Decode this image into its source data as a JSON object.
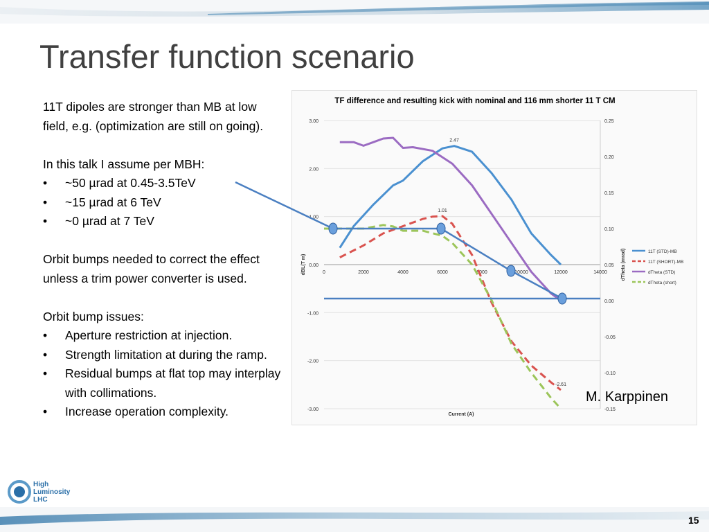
{
  "slide": {
    "title": "Transfer function scenario",
    "page_number": "15",
    "credit": "M. Karppinen",
    "logo_lines": [
      "High",
      "Luminosity",
      "LHC"
    ]
  },
  "body": {
    "para1": "11T dipoles are stronger than MB at low field, e.g. (optimization are still on going).",
    "para2": "In this talk I assume per MBH:",
    "assume_list": [
      "~50 µrad at 0.45-3.5TeV",
      "~15 µrad at 6 TeV",
      "~0 µrad at 7 TeV"
    ],
    "para3": "Orbit bumps needed to correct the effect unless a trim power converter is used.",
    "para4": "Orbit bump issues:",
    "issues_list": [
      "Aperture restriction at injection.",
      "Strength limitation at during the ramp.",
      "Residual bumps at flat top may interplay with collimations.",
      "Increase operation complexity."
    ]
  },
  "chart_data": {
    "type": "line",
    "title": "TF difference and resulting kick with nominal and 116 mm shorter 11 T CM",
    "xlabel": "Current (A)",
    "ylabel": "dBL(T m)",
    "y2label": "dTheta (mrad)",
    "xlim": [
      0,
      14000
    ],
    "ylim": [
      -3,
      3
    ],
    "y2lim": [
      -0.15,
      0.25
    ],
    "x_ticks": [
      "0",
      "2000",
      "4000",
      "6000",
      "8000",
      "10000",
      "12000",
      "14000"
    ],
    "y_ticks": [
      "3.00",
      "2.00",
      "1.00",
      "0.00",
      "-1.00",
      "-2.00",
      "-3.00"
    ],
    "y2_ticks": [
      "0.25",
      "0.20",
      "0.15",
      "0.10",
      "0.05",
      "0.00",
      "-0.05",
      "-0.10",
      "-0.15"
    ],
    "annotations": [
      {
        "text": "2.47",
        "x": 6600,
        "y": 2.47
      },
      {
        "text": "1.01",
        "x": 6000,
        "y": 1.01
      },
      {
        "text": "-2.61",
        "x": 12000,
        "y": -2.61
      }
    ],
    "legend_position": "right",
    "series": [
      {
        "name": "11T (STD)-MB",
        "axis": "left",
        "color": "#4a90d0",
        "dash": "",
        "x": [
          800,
          1500,
          2500,
          3500,
          4000,
          5000,
          6000,
          6600,
          7500,
          8500,
          9500,
          10500,
          11500,
          12000
        ],
        "y": [
          0.35,
          0.8,
          1.25,
          1.65,
          1.75,
          2.15,
          2.42,
          2.47,
          2.35,
          1.9,
          1.35,
          0.65,
          0.2,
          0.0
        ]
      },
      {
        "name": "11T (SHORT)-MB",
        "axis": "left",
        "color": "#d9534f",
        "dash": "10,6",
        "x": [
          800,
          2000,
          3000,
          4000,
          5000,
          5500,
          6000,
          6500,
          7500,
          8500,
          9500,
          10500,
          11500,
          12000
        ],
        "y": [
          0.15,
          0.4,
          0.65,
          0.8,
          0.95,
          1.0,
          1.01,
          0.85,
          0.2,
          -0.8,
          -1.6,
          -2.1,
          -2.45,
          -2.61
        ]
      },
      {
        "name": "dTheta (STD)",
        "axis": "right",
        "color": "#9b6bc2",
        "dash": "",
        "x": [
          800,
          1500,
          2000,
          2500,
          3000,
          3500,
          4000,
          4500,
          5500,
          6500,
          7500,
          8500,
          9500,
          10500,
          11500,
          12000
        ],
        "y": [
          0.22,
          0.22,
          0.215,
          0.22,
          0.225,
          0.226,
          0.212,
          0.213,
          0.208,
          0.19,
          0.16,
          0.12,
          0.08,
          0.04,
          0.01,
          0.0
        ]
      },
      {
        "name": "dTheta (short)",
        "axis": "right",
        "color": "#9cc55a",
        "dash": "10,6",
        "x": [
          0,
          1000,
          2000,
          3000,
          3500,
          4000,
          5000,
          6000,
          6500,
          7500,
          8500,
          9500,
          10500,
          11500,
          12000
        ],
        "y": [
          0.1,
          0.1,
          0.1,
          0.105,
          0.103,
          0.097,
          0.097,
          0.09,
          0.08,
          0.05,
          0.0,
          -0.06,
          -0.1,
          -0.135,
          -0.15
        ]
      }
    ]
  }
}
